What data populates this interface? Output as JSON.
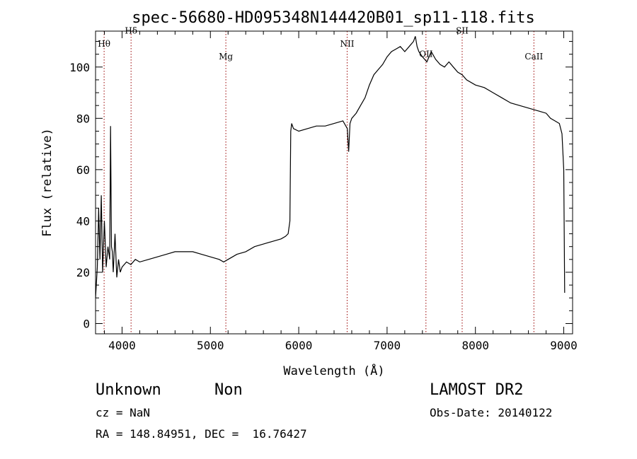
{
  "chart_data": {
    "type": "line",
    "title": "spec-56680-HD095348N144420B01_sp11-118.fits",
    "xlabel": "Wavelength (Å)",
    "ylabel": "Flux (relative)",
    "xlim": [
      3700,
      9100
    ],
    "ylim": [
      -4,
      114
    ],
    "xticks": [
      4000,
      5000,
      6000,
      7000,
      8000,
      9000
    ],
    "yticks": [
      0,
      20,
      40,
      60,
      80,
      100
    ],
    "grid": false,
    "line_color": "#000000",
    "marker_color": "#990000",
    "series": [
      {
        "x": [
          3700,
          3720,
          3735,
          3750,
          3765,
          3780,
          3800,
          3820,
          3840,
          3860,
          3870,
          3880,
          3890,
          3900,
          3920,
          3940,
          3960,
          3980,
          4000,
          4050,
          4100,
          4150,
          4200,
          4300,
          4400,
          4500,
          4600,
          4700,
          4800,
          4900,
          5000,
          5100,
          5150,
          5200,
          5250,
          5300,
          5400,
          5500,
          5600,
          5700,
          5800,
          5850,
          5880,
          5900,
          5910,
          5920,
          5940,
          6000,
          6100,
          6200,
          6300,
          6400,
          6500,
          6550,
          6565,
          6580,
          6600,
          6650,
          6700,
          6750,
          6800,
          6850,
          6900,
          6950,
          7000,
          7050,
          7100,
          7150,
          7200,
          7250,
          7300,
          7320,
          7340,
          7360,
          7400,
          7450,
          7500,
          7550,
          7600,
          7650,
          7700,
          7750,
          7800,
          7850,
          7900,
          8000,
          8100,
          8200,
          8300,
          8400,
          8500,
          8600,
          8700,
          8800,
          8850,
          8900,
          8950,
          8980,
          9000,
          9010
        ],
        "y": [
          10,
          22,
          45,
          25,
          50,
          20,
          40,
          22,
          30,
          25,
          77,
          30,
          28,
          20,
          35,
          18,
          25,
          20,
          22,
          24,
          23,
          25,
          24,
          25,
          26,
          27,
          28,
          28,
          28,
          27,
          26,
          25,
          24,
          25,
          26,
          27,
          28,
          30,
          31,
          32,
          33,
          34,
          35,
          40,
          75,
          78,
          76,
          75,
          76,
          77,
          77,
          78,
          79,
          76,
          67,
          78,
          80,
          82,
          85,
          88,
          93,
          97,
          99,
          101,
          104,
          106,
          107,
          108,
          106,
          108,
          110,
          112,
          108,
          106,
          104,
          102,
          106,
          103,
          101,
          100,
          102,
          100,
          98,
          97,
          95,
          93,
          92,
          90,
          88,
          86,
          85,
          84,
          83,
          82,
          80,
          79,
          78,
          74,
          60,
          12
        ]
      }
    ],
    "line_markers": [
      {
        "label": "Hθ",
        "x": 3797,
        "label_y": 108
      },
      {
        "label": "Hδ",
        "x": 4102,
        "label_y": 113
      },
      {
        "label": "Mg",
        "x": 5175,
        "label_y": 103
      },
      {
        "label": "NII",
        "x": 6548,
        "label_y": 108
      },
      {
        "label": "OII",
        "x": 7440,
        "label_y": 104
      },
      {
        "label": "SII",
        "x": 7850,
        "label_y": 113
      },
      {
        "label": "CaII",
        "x": 8662,
        "label_y": 103
      }
    ]
  },
  "info": {
    "class_label": "Unknown",
    "subclass_label": "Non",
    "survey": "LAMOST DR2",
    "cz": "cz = NaN",
    "obs_date": "Obs-Date: 20140122",
    "coords": "RA = 148.84951, DEC =  16.76427"
  }
}
